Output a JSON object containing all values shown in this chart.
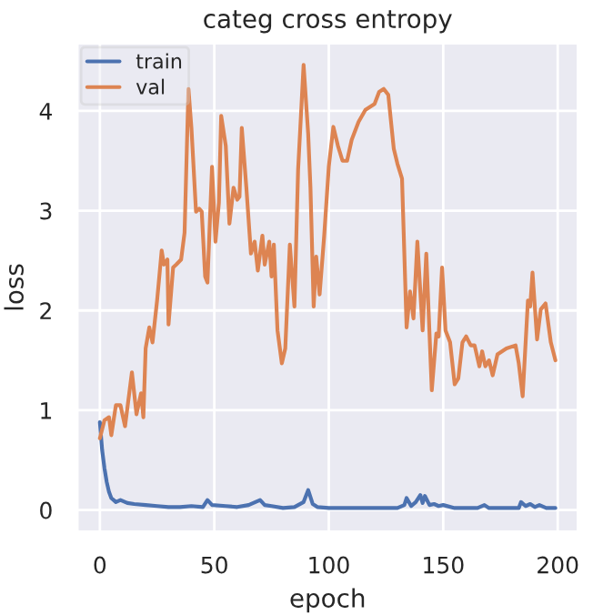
{
  "chart_data": {
    "type": "line",
    "title": "categ cross entropy",
    "xlabel": "epoch",
    "ylabel": "loss",
    "xlim": [
      -9.95,
      208.95
    ],
    "ylim": [
      -0.22,
      4.68
    ],
    "xticks": [
      0,
      50,
      100,
      150,
      200
    ],
    "yticks": [
      0,
      1,
      2,
      3,
      4
    ],
    "grid": true,
    "legend": "top left",
    "line_style": "solid",
    "marker": "none",
    "series": [
      {
        "name": "train",
        "color": "#4c72b0",
        "x": [
          0,
          1,
          2,
          3,
          4,
          5,
          6,
          7,
          9,
          12,
          15,
          20,
          25,
          30,
          35,
          40,
          45,
          47,
          49,
          55,
          60,
          65,
          70,
          72,
          75,
          80,
          85,
          89,
          91,
          93,
          95,
          100,
          110,
          120,
          130,
          133,
          134,
          136,
          138,
          140,
          141,
          142,
          144,
          146,
          148,
          150,
          155,
          165,
          168,
          170,
          180,
          183,
          184,
          186,
          188,
          190,
          192,
          195,
          199
        ],
        "values": [
          0.88,
          0.6,
          0.42,
          0.28,
          0.18,
          0.12,
          0.1,
          0.08,
          0.1,
          0.07,
          0.06,
          0.05,
          0.04,
          0.03,
          0.03,
          0.04,
          0.03,
          0.1,
          0.05,
          0.04,
          0.03,
          0.05,
          0.1,
          0.05,
          0.04,
          0.02,
          0.03,
          0.08,
          0.2,
          0.06,
          0.03,
          0.02,
          0.02,
          0.02,
          0.02,
          0.05,
          0.12,
          0.04,
          0.08,
          0.15,
          0.07,
          0.14,
          0.05,
          0.06,
          0.04,
          0.05,
          0.02,
          0.02,
          0.05,
          0.02,
          0.02,
          0.02,
          0.08,
          0.04,
          0.06,
          0.03,
          0.05,
          0.02,
          0.02
        ]
      },
      {
        "name": "val",
        "color": "#dd8452",
        "x": [
          0,
          2,
          4,
          5,
          7,
          9,
          11,
          14,
          16,
          18,
          19,
          20,
          21.6,
          23,
          25,
          27,
          28,
          29.5,
          30,
          32,
          33.4,
          35.5,
          37,
          38.7,
          40,
          42,
          43.4,
          44.5,
          46,
          47,
          49,
          50.5,
          52,
          53,
          55,
          56.6,
          58.4,
          60,
          61,
          62,
          64,
          66,
          67.6,
          69,
          71,
          72,
          74,
          75,
          76,
          77.6,
          79.5,
          81,
          83,
          85,
          86.6,
          89,
          91,
          92,
          93.4,
          94.5,
          96,
          98,
          100,
          102,
          104,
          106,
          108,
          110,
          113,
          116,
          120,
          122,
          124,
          126,
          128.4,
          130,
          132,
          134,
          135.5,
          137,
          138.7,
          141,
          142.6,
          145,
          147,
          148,
          149.5,
          151,
          153,
          155,
          156.6,
          158.4,
          160,
          162,
          163.7,
          165.8,
          167,
          168.4,
          170,
          171.6,
          173.7,
          177.6,
          181.6,
          183,
          184.7,
          187,
          188,
          189,
          191,
          192.6,
          194.7,
          197,
          199
        ],
        "values": [
          0.72,
          0.9,
          0.93,
          0.75,
          1.05,
          1.05,
          0.84,
          1.38,
          0.96,
          1.17,
          0.93,
          1.62,
          1.83,
          1.68,
          2.1,
          2.6,
          2.46,
          2.51,
          1.86,
          2.43,
          2.46,
          2.51,
          2.78,
          4.22,
          3.83,
          2.99,
          3.02,
          2.99,
          2.34,
          2.28,
          3.44,
          2.69,
          3.08,
          3.95,
          3.65,
          2.87,
          3.23,
          3.11,
          3.14,
          3.83,
          3.23,
          2.57,
          2.69,
          2.4,
          2.75,
          2.46,
          2.69,
          2.34,
          2.66,
          1.8,
          1.47,
          1.62,
          2.66,
          2.04,
          3.41,
          4.46,
          3.77,
          3.23,
          2.04,
          2.54,
          2.16,
          2.75,
          3.44,
          3.84,
          3.65,
          3.5,
          3.5,
          3.71,
          3.89,
          4.01,
          4.07,
          4.19,
          4.22,
          4.16,
          3.62,
          3.47,
          3.32,
          1.83,
          2.19,
          1.92,
          2.69,
          1.8,
          2.57,
          1.2,
          1.77,
          1.74,
          2.43,
          1.8,
          1.68,
          1.26,
          1.32,
          1.68,
          1.74,
          1.65,
          1.65,
          1.44,
          1.59,
          1.44,
          1.5,
          1.35,
          1.56,
          1.62,
          1.65,
          1.47,
          1.14,
          2.1,
          2.04,
          2.38,
          1.71,
          2.01,
          2.07,
          1.68,
          1.5
        ]
      }
    ]
  }
}
